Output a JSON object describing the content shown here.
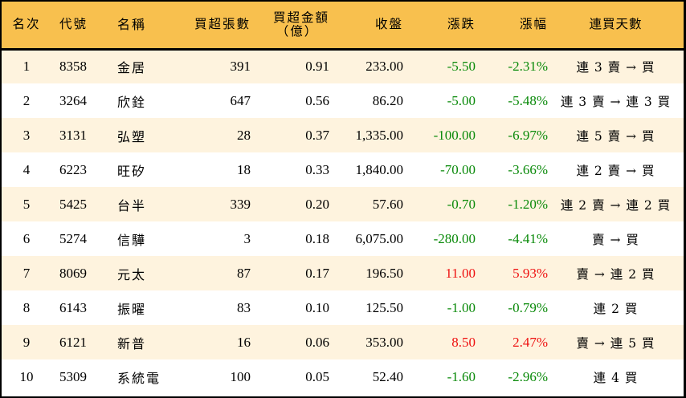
{
  "table": {
    "headers": {
      "rank": "名次",
      "code": "代號",
      "name": "名稱",
      "net_buy_lots": "買超張數",
      "net_buy_amount_main": "買超金額",
      "net_buy_amount_unit": "（億）",
      "close": "收盤",
      "change": "漲跌",
      "change_pct": "漲幅",
      "consecutive_days": "連買天數"
    },
    "colors": {
      "header_bg": "#F8C04E",
      "odd_row_bg": "#FEF3DE",
      "even_row_bg": "#FFFFFF",
      "down": "#0A8A0A",
      "up": "#EE1010"
    },
    "rows": [
      {
        "rank": "1",
        "code": "8358",
        "name": "金居",
        "lots": "391",
        "amount": "0.91",
        "close": "233.00",
        "change": "-5.50",
        "pct": "-2.31%",
        "dir": "down",
        "days": "連 3 賣 → 買"
      },
      {
        "rank": "2",
        "code": "3264",
        "name": "欣銓",
        "lots": "647",
        "amount": "0.56",
        "close": "86.20",
        "change": "-5.00",
        "pct": "-5.48%",
        "dir": "down",
        "days": "連 3 賣 → 連 3 買"
      },
      {
        "rank": "3",
        "code": "3131",
        "name": "弘塑",
        "lots": "28",
        "amount": "0.37",
        "close": "1,335.00",
        "change": "-100.00",
        "pct": "-6.97%",
        "dir": "down",
        "days": "連 5 賣 → 買"
      },
      {
        "rank": "4",
        "code": "6223",
        "name": "旺矽",
        "lots": "18",
        "amount": "0.33",
        "close": "1,840.00",
        "change": "-70.00",
        "pct": "-3.66%",
        "dir": "down",
        "days": "連 2 賣 → 買"
      },
      {
        "rank": "5",
        "code": "5425",
        "name": "台半",
        "lots": "339",
        "amount": "0.20",
        "close": "57.60",
        "change": "-0.70",
        "pct": "-1.20%",
        "dir": "down",
        "days": "連 2 賣 → 連 2 買"
      },
      {
        "rank": "6",
        "code": "5274",
        "name": "信驊",
        "lots": "3",
        "amount": "0.18",
        "close": "6,075.00",
        "change": "-280.00",
        "pct": "-4.41%",
        "dir": "down",
        "days": "賣 → 買"
      },
      {
        "rank": "7",
        "code": "8069",
        "name": "元太",
        "lots": "87",
        "amount": "0.17",
        "close": "196.50",
        "change": "11.00",
        "pct": "5.93%",
        "dir": "up",
        "days": "賣 → 連 2 買"
      },
      {
        "rank": "8",
        "code": "6143",
        "name": "振曜",
        "lots": "83",
        "amount": "0.10",
        "close": "125.50",
        "change": "-1.00",
        "pct": "-0.79%",
        "dir": "down",
        "days": "連 2 買"
      },
      {
        "rank": "9",
        "code": "6121",
        "name": "新普",
        "lots": "16",
        "amount": "0.06",
        "close": "353.00",
        "change": "8.50",
        "pct": "2.47%",
        "dir": "up",
        "days": "賣 → 連 5 買"
      },
      {
        "rank": "10",
        "code": "5309",
        "name": "系統電",
        "lots": "100",
        "amount": "0.05",
        "close": "52.40",
        "change": "-1.60",
        "pct": "-2.96%",
        "dir": "down",
        "days": "連 4 買"
      }
    ]
  }
}
